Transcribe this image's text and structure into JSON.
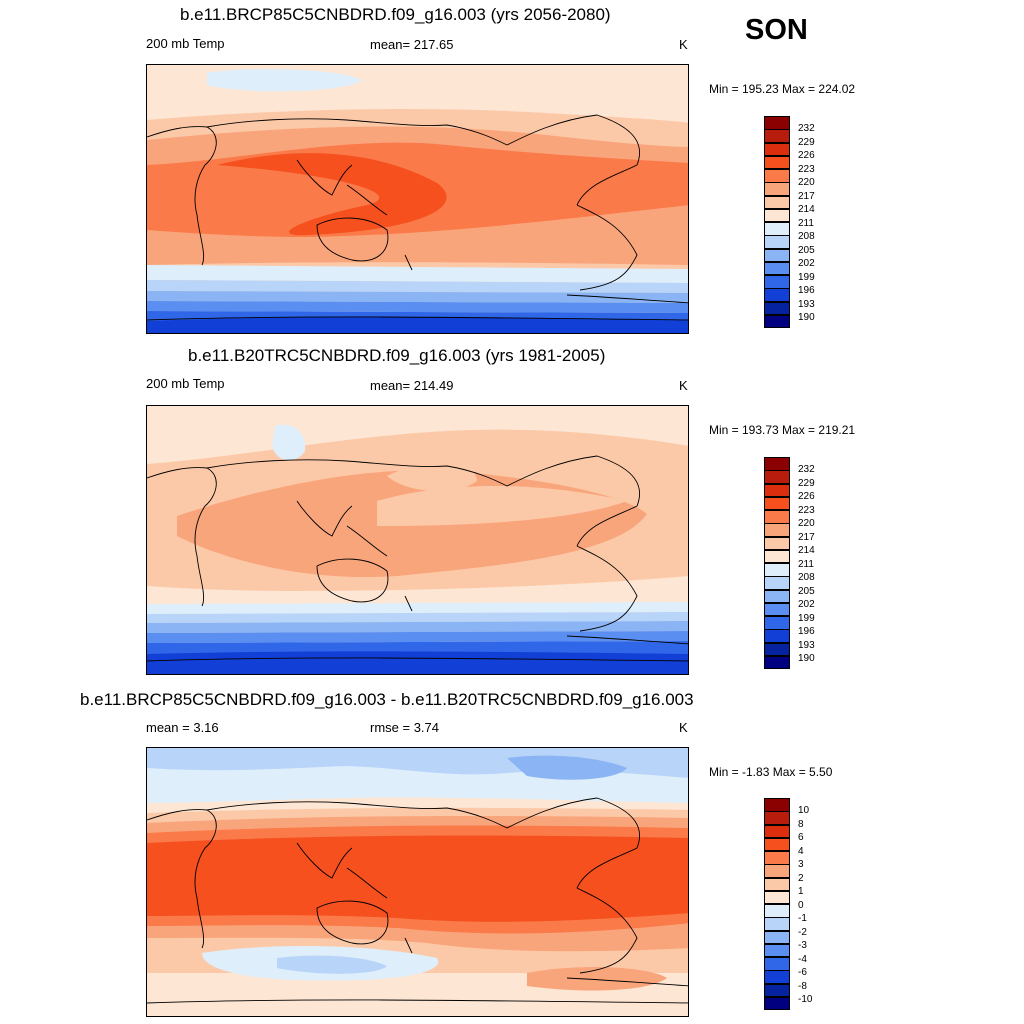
{
  "season": "SON",
  "panels": [
    {
      "title": "b.e11.BRCP85C5CNBDRD.f09_g16.003 (yrs 2056-2080)",
      "left_label": "200 mb Temp",
      "center_label": "mean= 217.65",
      "units": "K",
      "minmax": "Min = 195.23 Max = 224.02",
      "colorbar": {
        "labels": [
          "232",
          "229",
          "226",
          "223",
          "220",
          "217",
          "214",
          "211",
          "208",
          "205",
          "202",
          "199",
          "196",
          "193",
          "190"
        ],
        "colors": [
          "#8b0000",
          "#b81c0c",
          "#db2e0f",
          "#f5501e",
          "#fa7a49",
          "#f9a57c",
          "#fcc9a8",
          "#fde6d3",
          "#deeefb",
          "#b8d4f8",
          "#8ab4f4",
          "#5a8ef0",
          "#2f67e8",
          "#1240d6",
          "#05239e",
          "#000080"
        ]
      },
      "map_palette": "absolute_future"
    },
    {
      "title": "b.e11.B20TRC5CNBDRD.f09_g16.003 (yrs 1981-2005)",
      "left_label": "200 mb Temp",
      "center_label": "mean= 214.49",
      "units": "K",
      "minmax": "Min = 193.73 Max = 219.21",
      "colorbar": {
        "labels": [
          "232",
          "229",
          "226",
          "223",
          "220",
          "217",
          "214",
          "211",
          "208",
          "205",
          "202",
          "199",
          "196",
          "193",
          "190"
        ],
        "colors": [
          "#8b0000",
          "#b81c0c",
          "#db2e0f",
          "#f5501e",
          "#fa7a49",
          "#f9a57c",
          "#fcc9a8",
          "#fde6d3",
          "#deeefb",
          "#b8d4f8",
          "#8ab4f4",
          "#5a8ef0",
          "#2f67e8",
          "#1240d6",
          "#05239e",
          "#000080"
        ]
      },
      "map_palette": "absolute_past"
    },
    {
      "title": "b.e11.BRCP85C5CNBDRD.f09_g16.003 - b.e11.B20TRC5CNBDRD.f09_g16.003",
      "left_label": "mean =   3.16",
      "center_label": "rmse =   3.74",
      "units": "K",
      "minmax": "Min =  -1.83 Max =   5.50",
      "colorbar": {
        "labels": [
          "10",
          "8",
          "6",
          "4",
          "3",
          "2",
          "1",
          "0",
          "-1",
          "-2",
          "-3",
          "-4",
          "-6",
          "-8",
          "-10"
        ],
        "colors": [
          "#8b0000",
          "#b81c0c",
          "#db2e0f",
          "#f5501e",
          "#fa7a49",
          "#f9a57c",
          "#fcc9a8",
          "#fde6d3",
          "#deeefb",
          "#b8d4f8",
          "#8ab4f4",
          "#5a8ef0",
          "#2f67e8",
          "#1240d6",
          "#05239e",
          "#000080"
        ]
      },
      "map_palette": "difference"
    }
  ]
}
